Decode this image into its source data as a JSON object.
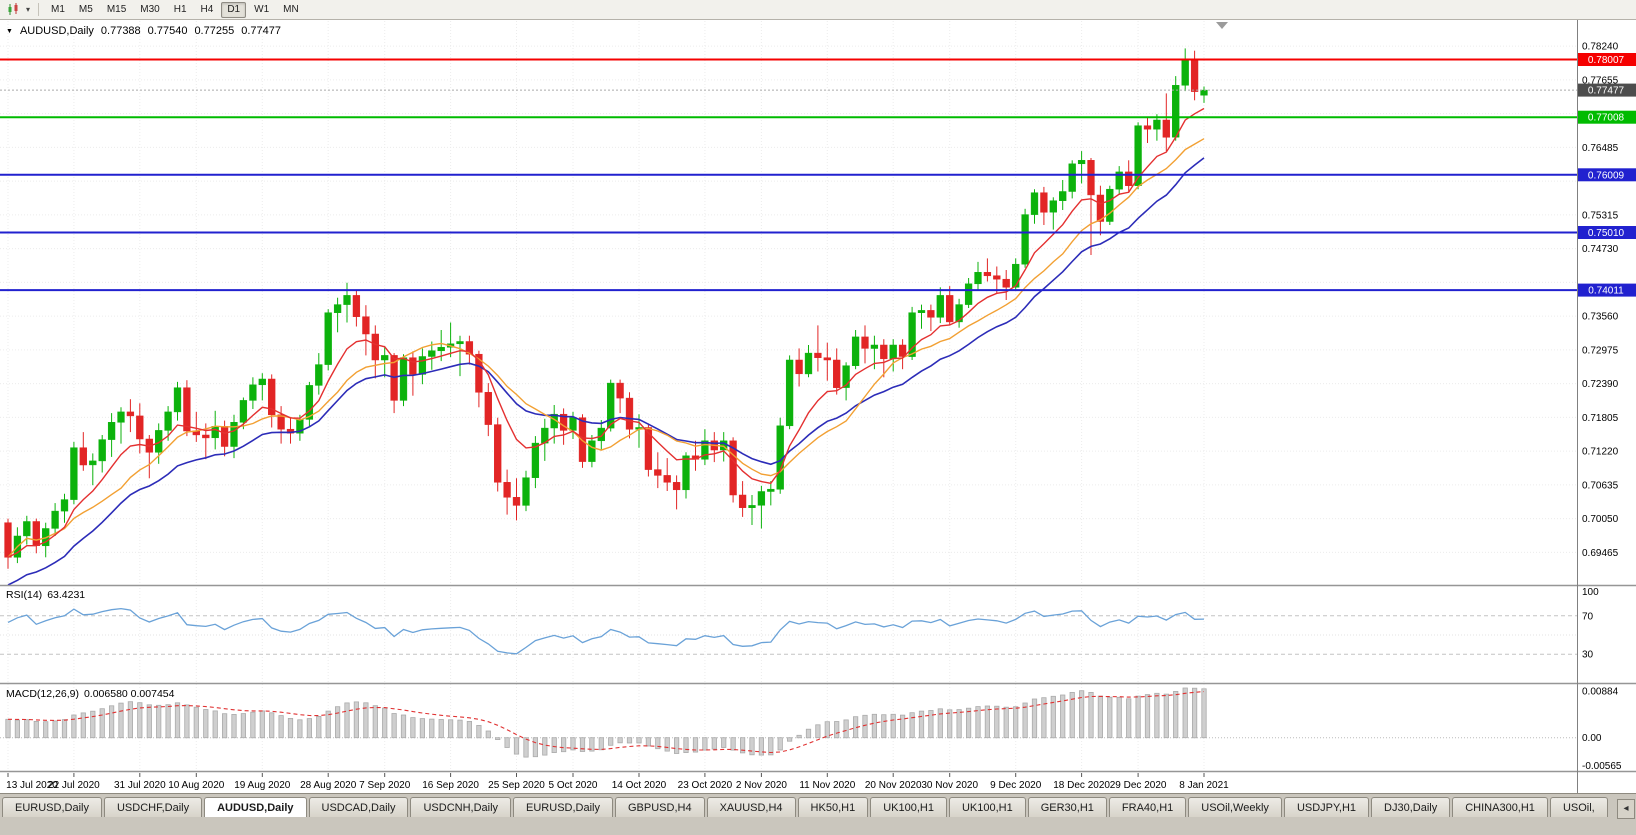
{
  "toolbar": {
    "chart_type_icon": "candlestick-chart",
    "dropdown_icon": "▾",
    "timeframes": [
      "M1",
      "M5",
      "M15",
      "M30",
      "H1",
      "H4",
      "D1",
      "W1",
      "MN"
    ],
    "active_timeframe": "D1"
  },
  "chart_header": {
    "collapse_icon": "▼",
    "symbol": "AUDUSD,Daily",
    "open": "0.77388",
    "high": "0.77540",
    "low": "0.77255",
    "close": "0.77477"
  },
  "price_axis": {
    "labels": [
      {
        "text": "0.78240",
        "value": 0.7824
      },
      {
        "text": "0.77655",
        "value": 0.77655
      },
      {
        "text": "0.77070",
        "value": 0.7707
      },
      {
        "text": "0.76485",
        "value": 0.76485
      },
      {
        "text": "0.75900",
        "value": 0.759
      },
      {
        "text": "0.75315",
        "value": 0.75315
      },
      {
        "text": "0.74730",
        "value": 0.7473
      },
      {
        "text": "0.74145",
        "value": 0.74145
      },
      {
        "text": "0.73560",
        "value": 0.7356
      },
      {
        "text": "0.72975",
        "value": 0.72975
      },
      {
        "text": "0.72390",
        "value": 0.7239
      },
      {
        "text": "0.71805",
        "value": 0.71805
      },
      {
        "text": "0.71220",
        "value": 0.7122
      },
      {
        "text": "0.70635",
        "value": 0.70635
      },
      {
        "text": "0.70050",
        "value": 0.7005
      },
      {
        "text": "0.69465",
        "value": 0.69465
      },
      {
        "text": "0.68880",
        "value": 0.6888
      }
    ],
    "current_badge": {
      "text": "0.77477",
      "value": 0.77477,
      "bg": "#4d4d4d"
    }
  },
  "hlines": [
    {
      "label": "0.78007",
      "value": 0.78007,
      "color": "#f50000"
    },
    {
      "label": "0.77008",
      "value": 0.77008,
      "color": "#00bb00"
    },
    {
      "label": "0.76009",
      "value": 0.76009,
      "color": "#2121cf"
    },
    {
      "label": "0.75010",
      "value": 0.7501,
      "color": "#2121cf"
    },
    {
      "label": "0.74011",
      "value": 0.74011,
      "color": "#2121cf"
    }
  ],
  "rsi_panel": {
    "label": "RSI(14)",
    "value": "63.4231",
    "axis_labels": [
      {
        "text": "100",
        "value": 100
      },
      {
        "text": "70",
        "value": 70
      },
      {
        "text": "30",
        "value": 30
      }
    ]
  },
  "macd_panel": {
    "label": "MACD(12,26,9)",
    "values": "0.006580 0.007454",
    "axis_labels": [
      {
        "text": "0.00884",
        "value": 0.00884
      },
      {
        "text": "0.00",
        "value": 0
      },
      {
        "text": "-0.00565",
        "value": -0.00565
      }
    ]
  },
  "tabs": {
    "scroll_icon": "◂",
    "items": [
      {
        "label": "EURUSD,Daily",
        "active": false
      },
      {
        "label": "USDCHF,Daily",
        "active": false
      },
      {
        "label": "AUDUSD,Daily",
        "active": true
      },
      {
        "label": "USDCAD,Daily",
        "active": false
      },
      {
        "label": "USDCNH,Daily",
        "active": false
      },
      {
        "label": "EURUSD,Daily",
        "active": false
      },
      {
        "label": "GBPUSD,H4",
        "active": false
      },
      {
        "label": "XAUUSD,H4",
        "active": false
      },
      {
        "label": "HK50,H1",
        "active": false
      },
      {
        "label": "UK100,H1",
        "active": false
      },
      {
        "label": "UK100,H1",
        "active": false
      },
      {
        "label": "GER30,H1",
        "active": false
      },
      {
        "label": "FRA40,H1",
        "active": false
      },
      {
        "label": "USOil,Weekly",
        "active": false
      },
      {
        "label": "USDJPY,H1",
        "active": false
      },
      {
        "label": "DJ30,Daily",
        "active": false
      },
      {
        "label": "CHINA300,H1",
        "active": false
      },
      {
        "label": "USOil,",
        "active": false
      }
    ]
  },
  "chart_data": {
    "type": "candlestick",
    "symbol": "AUDUSD",
    "timeframe": "Daily",
    "y_range": [
      0.689,
      0.78675
    ],
    "colors": {
      "up": "#0cb20c",
      "down": "#e22525",
      "ma_fast": "#e43030",
      "ma_mid": "#f2a033",
      "ma_slow": "#2c2cb8",
      "rsi": "#6aa2d8",
      "macd_hist": "#cfcfcf",
      "macd_hist_stroke": "#ababab",
      "macd_signal": "#e03232"
    },
    "overlays": [
      {
        "name": "ma-fast",
        "type": "ema",
        "period": 8
      },
      {
        "name": "ma-mid",
        "type": "sma",
        "period": 13
      },
      {
        "name": "ma-slow",
        "type": "ema",
        "period": 20,
        "seed": 0.6885
      }
    ],
    "indicators": [
      {
        "name": "RSI",
        "params": "14",
        "current": "63.4231",
        "levels": [
          70,
          30
        ]
      },
      {
        "name": "MACD",
        "params": "12,26,9",
        "macd": "0.006580",
        "signal": "0.007454"
      }
    ],
    "x_ticks": [
      {
        "index": 0,
        "label": "13 Jul 2020"
      },
      {
        "index": 7,
        "label": "22 Jul 2020"
      },
      {
        "index": 14,
        "label": "31 Jul 2020"
      },
      {
        "index": 20,
        "label": "10 Aug 2020"
      },
      {
        "index": 27,
        "label": "19 Aug 2020"
      },
      {
        "index": 34,
        "label": "28 Aug 2020"
      },
      {
        "index": 40,
        "label": "7 Sep 2020"
      },
      {
        "index": 47,
        "label": "16 Sep 2020"
      },
      {
        "index": 54,
        "label": "25 Sep 2020"
      },
      {
        "index": 60,
        "label": "5 Oct 2020"
      },
      {
        "index": 67,
        "label": "14 Oct 2020"
      },
      {
        "index": 74,
        "label": "23 Oct 2020"
      },
      {
        "index": 80,
        "label": "2 Nov 2020"
      },
      {
        "index": 87,
        "label": "11 Nov 2020"
      },
      {
        "index": 94,
        "label": "20 Nov 2020"
      },
      {
        "index": 100,
        "label": "30 Nov 2020"
      },
      {
        "index": 107,
        "label": "9 Dec 2020"
      },
      {
        "index": 114,
        "label": "18 Dec 2020"
      },
      {
        "index": 120,
        "label": "29 Dec 2020"
      },
      {
        "index": 127,
        "label": "8 Jan 2021"
      }
    ],
    "candles": [
      [
        0.6998,
        0.7005,
        0.6918,
        0.6938
      ],
      [
        0.6938,
        0.699,
        0.6928,
        0.6975
      ],
      [
        0.6975,
        0.701,
        0.696,
        0.7
      ],
      [
        0.7,
        0.7005,
        0.6945,
        0.6958
      ],
      [
        0.6958,
        0.6998,
        0.6938,
        0.6988
      ],
      [
        0.6988,
        0.7032,
        0.6975,
        0.7018
      ],
      [
        0.7018,
        0.7048,
        0.6998,
        0.7038
      ],
      [
        0.7038,
        0.7138,
        0.703,
        0.7128
      ],
      [
        0.7128,
        0.7155,
        0.7088,
        0.7098
      ],
      [
        0.7098,
        0.7118,
        0.7063,
        0.7105
      ],
      [
        0.7105,
        0.715,
        0.7085,
        0.7142
      ],
      [
        0.7142,
        0.7188,
        0.7112,
        0.7172
      ],
      [
        0.7172,
        0.7198,
        0.7135,
        0.719
      ],
      [
        0.719,
        0.7212,
        0.7155,
        0.7183
      ],
      [
        0.7183,
        0.7205,
        0.7118,
        0.7143
      ],
      [
        0.7143,
        0.715,
        0.7075,
        0.712
      ],
      [
        0.712,
        0.717,
        0.71,
        0.7158
      ],
      [
        0.7158,
        0.72,
        0.714,
        0.719
      ],
      [
        0.719,
        0.7242,
        0.7175,
        0.7232
      ],
      [
        0.7232,
        0.7245,
        0.7148,
        0.7157
      ],
      [
        0.7157,
        0.719,
        0.7138,
        0.715
      ],
      [
        0.715,
        0.717,
        0.7108,
        0.7145
      ],
      [
        0.7145,
        0.7192,
        0.7125,
        0.7165
      ],
      [
        0.7165,
        0.7175,
        0.7113,
        0.713
      ],
      [
        0.713,
        0.7185,
        0.711,
        0.7172
      ],
      [
        0.7172,
        0.7215,
        0.716,
        0.721
      ],
      [
        0.721,
        0.725,
        0.7195,
        0.7237
      ],
      [
        0.7237,
        0.7257,
        0.721,
        0.7247
      ],
      [
        0.7247,
        0.7255,
        0.7163,
        0.7185
      ],
      [
        0.7185,
        0.72,
        0.7135,
        0.716
      ],
      [
        0.716,
        0.718,
        0.7135,
        0.7153
      ],
      [
        0.7153,
        0.7185,
        0.714,
        0.7177
      ],
      [
        0.7177,
        0.7242,
        0.7165,
        0.7236
      ],
      [
        0.7236,
        0.7292,
        0.722,
        0.7272
      ],
      [
        0.7272,
        0.7368,
        0.7262,
        0.7362
      ],
      [
        0.7362,
        0.7388,
        0.7328,
        0.7376
      ],
      [
        0.7376,
        0.7414,
        0.7345,
        0.7392
      ],
      [
        0.7392,
        0.74,
        0.7338,
        0.7355
      ],
      [
        0.7355,
        0.7375,
        0.7288,
        0.7325
      ],
      [
        0.7325,
        0.734,
        0.7248,
        0.728
      ],
      [
        0.728,
        0.7302,
        0.725,
        0.7288
      ],
      [
        0.7288,
        0.7292,
        0.7188,
        0.721
      ],
      [
        0.721,
        0.729,
        0.72,
        0.7284
      ],
      [
        0.7284,
        0.7295,
        0.7218,
        0.7255
      ],
      [
        0.7255,
        0.73,
        0.7238,
        0.7286
      ],
      [
        0.7286,
        0.7312,
        0.7263,
        0.7296
      ],
      [
        0.7296,
        0.7332,
        0.7278,
        0.7302
      ],
      [
        0.7302,
        0.7345,
        0.7285,
        0.7308
      ],
      [
        0.7308,
        0.7322,
        0.7252,
        0.7312
      ],
      [
        0.7312,
        0.7322,
        0.7272,
        0.729
      ],
      [
        0.729,
        0.7296,
        0.7198,
        0.7224
      ],
      [
        0.7224,
        0.724,
        0.7148,
        0.7168
      ],
      [
        0.7168,
        0.718,
        0.7052,
        0.7068
      ],
      [
        0.7068,
        0.709,
        0.7012,
        0.7042
      ],
      [
        0.7042,
        0.7075,
        0.7002,
        0.7028
      ],
      [
        0.7028,
        0.7088,
        0.7018,
        0.7076
      ],
      [
        0.7076,
        0.7148,
        0.7058,
        0.7136
      ],
      [
        0.7136,
        0.7178,
        0.7105,
        0.7162
      ],
      [
        0.7162,
        0.7202,
        0.7135,
        0.7186
      ],
      [
        0.7186,
        0.7196,
        0.7133,
        0.7158
      ],
      [
        0.7158,
        0.719,
        0.7143,
        0.718
      ],
      [
        0.718,
        0.7186,
        0.7093,
        0.7104
      ],
      [
        0.7104,
        0.715,
        0.7094,
        0.714
      ],
      [
        0.714,
        0.7176,
        0.7124,
        0.7162
      ],
      [
        0.7162,
        0.7246,
        0.7156,
        0.724
      ],
      [
        0.724,
        0.7246,
        0.7188,
        0.7214
      ],
      [
        0.7214,
        0.7224,
        0.7144,
        0.716
      ],
      [
        0.716,
        0.7186,
        0.7128,
        0.7163
      ],
      [
        0.7163,
        0.717,
        0.7078,
        0.709
      ],
      [
        0.709,
        0.712,
        0.7058,
        0.708
      ],
      [
        0.708,
        0.711,
        0.7053,
        0.7068
      ],
      [
        0.7068,
        0.708,
        0.7021,
        0.7055
      ],
      [
        0.7055,
        0.712,
        0.704,
        0.7114
      ],
      [
        0.7114,
        0.714,
        0.7088,
        0.7108
      ],
      [
        0.7108,
        0.716,
        0.7098,
        0.714
      ],
      [
        0.714,
        0.7155,
        0.7103,
        0.7124
      ],
      [
        0.7124,
        0.7155,
        0.7104,
        0.714
      ],
      [
        0.714,
        0.7146,
        0.7033,
        0.7046
      ],
      [
        0.7046,
        0.707,
        0.7008,
        0.7024
      ],
      [
        0.7024,
        0.7046,
        0.6994,
        0.7028
      ],
      [
        0.7028,
        0.7062,
        0.6988,
        0.7052
      ],
      [
        0.7052,
        0.707,
        0.7028,
        0.7056
      ],
      [
        0.7056,
        0.718,
        0.7048,
        0.7166
      ],
      [
        0.7166,
        0.7288,
        0.716,
        0.728
      ],
      [
        0.728,
        0.73,
        0.7234,
        0.7256
      ],
      [
        0.7256,
        0.7306,
        0.725,
        0.7292
      ],
      [
        0.7292,
        0.734,
        0.726,
        0.7284
      ],
      [
        0.7284,
        0.731,
        0.7244,
        0.728
      ],
      [
        0.728,
        0.73,
        0.722,
        0.7232
      ],
      [
        0.7232,
        0.7276,
        0.721,
        0.727
      ],
      [
        0.727,
        0.7332,
        0.7264,
        0.732
      ],
      [
        0.732,
        0.734,
        0.7274,
        0.73
      ],
      [
        0.73,
        0.7322,
        0.7264,
        0.7306
      ],
      [
        0.7306,
        0.7316,
        0.725,
        0.7282
      ],
      [
        0.7282,
        0.7316,
        0.726,
        0.7306
      ],
      [
        0.7306,
        0.7316,
        0.7264,
        0.7286
      ],
      [
        0.7286,
        0.7372,
        0.728,
        0.7362
      ],
      [
        0.7362,
        0.7376,
        0.7334,
        0.7366
      ],
      [
        0.7366,
        0.7376,
        0.733,
        0.7354
      ],
      [
        0.7354,
        0.7406,
        0.7344,
        0.7392
      ],
      [
        0.7392,
        0.7408,
        0.734,
        0.7346
      ],
      [
        0.7346,
        0.7386,
        0.7336,
        0.7376
      ],
      [
        0.7376,
        0.7422,
        0.737,
        0.7412
      ],
      [
        0.7412,
        0.745,
        0.7402,
        0.7432
      ],
      [
        0.7432,
        0.7456,
        0.7416,
        0.7426
      ],
      [
        0.7426,
        0.7442,
        0.7396,
        0.742
      ],
      [
        0.742,
        0.7436,
        0.7384,
        0.7406
      ],
      [
        0.7406,
        0.7456,
        0.74,
        0.7446
      ],
      [
        0.7446,
        0.7542,
        0.744,
        0.7532
      ],
      [
        0.7532,
        0.7576,
        0.7516,
        0.757
      ],
      [
        0.757,
        0.758,
        0.7514,
        0.7536
      ],
      [
        0.7536,
        0.7562,
        0.7506,
        0.7556
      ],
      [
        0.7556,
        0.7592,
        0.754,
        0.7572
      ],
      [
        0.7572,
        0.7626,
        0.756,
        0.762
      ],
      [
        0.762,
        0.7642,
        0.7586,
        0.7626
      ],
      [
        0.7626,
        0.763,
        0.7462,
        0.7566
      ],
      [
        0.7566,
        0.7582,
        0.7496,
        0.752
      ],
      [
        0.752,
        0.7582,
        0.7514,
        0.7576
      ],
      [
        0.7576,
        0.7616,
        0.7566,
        0.7606
      ],
      [
        0.7606,
        0.7626,
        0.757,
        0.7582
      ],
      [
        0.7582,
        0.7692,
        0.7576,
        0.7686
      ],
      [
        0.7686,
        0.7702,
        0.7656,
        0.768
      ],
      [
        0.768,
        0.7706,
        0.766,
        0.7696
      ],
      [
        0.7696,
        0.7742,
        0.7642,
        0.7666
      ],
      [
        0.7666,
        0.7772,
        0.766,
        0.7756
      ],
      [
        0.7756,
        0.782,
        0.7746,
        0.78
      ],
      [
        0.78,
        0.7816,
        0.773,
        0.7745
      ],
      [
        0.77388,
        0.7754,
        0.77255,
        0.77477
      ]
    ]
  }
}
